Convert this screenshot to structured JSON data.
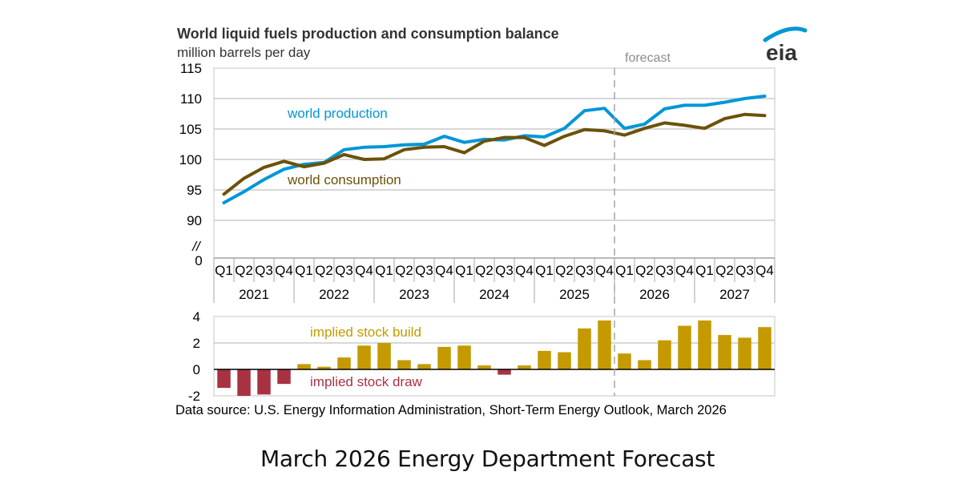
{
  "chart_data": [
    {
      "type": "line",
      "title": "World liquid fuels production and consumption balance",
      "subtitle": "million barrels per day",
      "xlabel": "",
      "ylabel": "million barrels per day",
      "ylim": [
        90,
        115
      ],
      "yticks": [
        "115",
        "110",
        "105",
        "100",
        "95",
        "90"
      ],
      "ytick_values": [
        115,
        110,
        105,
        100,
        95,
        90
      ],
      "axis_break_label": "//",
      "axis_zero_label": "0",
      "grid": true,
      "quarters": [
        "Q1",
        "Q2",
        "Q3",
        "Q4",
        "Q1",
        "Q2",
        "Q3",
        "Q4",
        "Q1",
        "Q2",
        "Q3",
        "Q4",
        "Q1",
        "Q2",
        "Q3",
        "Q4",
        "Q1",
        "Q2",
        "Q3",
        "Q4",
        "Q1",
        "Q2",
        "Q3",
        "Q4",
        "Q1",
        "Q2",
        "Q3",
        "Q4"
      ],
      "years": [
        "2021",
        "2022",
        "2023",
        "2024",
        "2025",
        "2026",
        "2027"
      ],
      "forecast_label": "forecast",
      "forecast_starts_index": 20,
      "series": [
        {
          "name": "world production",
          "color": "#0096d7",
          "values": [
            92.9,
            94.7,
            96.7,
            98.4,
            99.2,
            99.5,
            101.6,
            102.0,
            102.1,
            102.4,
            102.5,
            103.8,
            102.8,
            103.3,
            103.2,
            103.9,
            103.7,
            105.1,
            108.0,
            108.4,
            105.1,
            105.8,
            108.3,
            108.9,
            108.9,
            109.4,
            110.0,
            110.4
          ]
        },
        {
          "name": "world consumption",
          "color": "#6b5208",
          "values": [
            94.3,
            96.9,
            98.7,
            99.7,
            98.8,
            99.4,
            100.8,
            100.0,
            100.1,
            101.6,
            102.0,
            102.1,
            101.1,
            103.0,
            103.6,
            103.6,
            102.3,
            103.8,
            104.9,
            104.7,
            104.0,
            105.1,
            106.0,
            105.6,
            105.1,
            106.7,
            107.4,
            107.2
          ]
        }
      ]
    },
    {
      "type": "bar",
      "title": "",
      "ylim": [
        -2,
        4
      ],
      "yticks": [
        "4",
        "2",
        "0",
        "-2"
      ],
      "ytick_values": [
        4,
        2,
        0,
        -2
      ],
      "grid": true,
      "build_label": "implied stock  build",
      "draw_label": "implied stock draw",
      "build_color": "#c49a00",
      "draw_color": "#a83242",
      "values": [
        -1.4,
        -2.0,
        -1.9,
        -1.1,
        0.4,
        0.2,
        0.9,
        1.8,
        2.0,
        0.7,
        0.4,
        1.7,
        1.8,
        0.3,
        -0.4,
        0.3,
        1.4,
        1.3,
        3.1,
        3.7,
        1.2,
        0.7,
        2.2,
        3.3,
        3.7,
        2.6,
        2.4,
        3.2
      ]
    }
  ],
  "logo": "eia",
  "source": "Data source: U.S. Energy Information Administration, Short-Term Energy Outlook, March 2026",
  "caption": "March 2026 Energy Department Forecast"
}
